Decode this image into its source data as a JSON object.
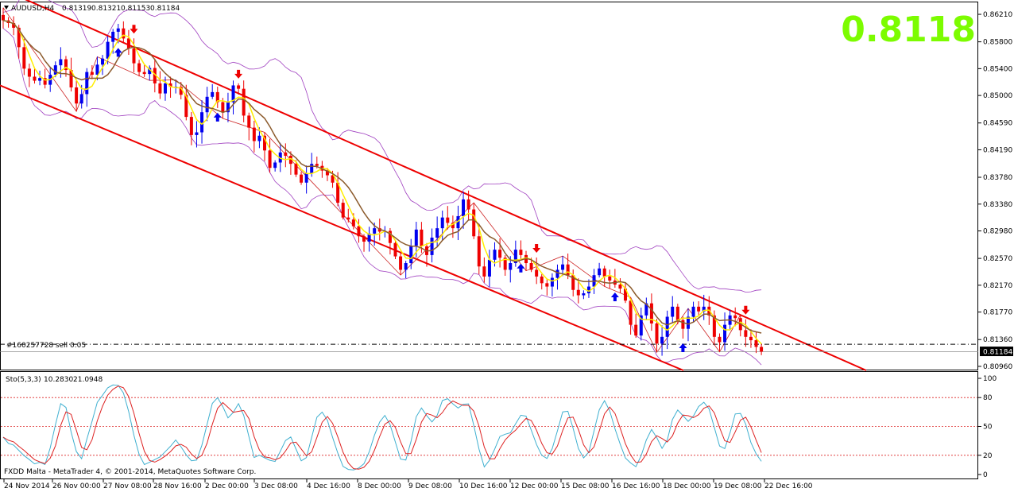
{
  "chart_data": [
    {
      "type": "candlestick",
      "title": "AUDUSD,H4",
      "ohlc_header": [
        "0.81319",
        "0.81321",
        "0.81153",
        "0.81184"
      ],
      "price_overlay": "0.8118",
      "ylim": [
        0.809,
        0.864
      ],
      "yticks": [
        "0.86210",
        "0.85800",
        "0.85400",
        "0.85000",
        "0.84590",
        "0.84190",
        "0.83780",
        "0.83380",
        "0.82980",
        "0.82570",
        "0.82170",
        "0.81770",
        "0.81360",
        "0.80960"
      ],
      "current_price_label": "0.81184",
      "order_label": "#160257728 sell 0.05",
      "order_price": 0.8129,
      "colors": {
        "up": "#0000ee",
        "down": "#ee0000",
        "fast_ma": "#ffee00",
        "slow_ma": "#8b5a2b",
        "channel": "#ee0000",
        "bands": "#a040c0",
        "overlay": "#7cfc00"
      },
      "channel_upper": [
        [
          0,
          0.866
        ],
        [
          1090,
          0.809
        ]
      ],
      "channel_lower": [
        [
          0,
          0.8515
        ],
        [
          860,
          0.809
        ]
      ],
      "closes": [
        0.8612,
        0.8608,
        0.8601,
        0.8572,
        0.854,
        0.8528,
        0.8522,
        0.8526,
        0.8516,
        0.8531,
        0.8545,
        0.8554,
        0.8538,
        0.8512,
        0.8488,
        0.8502,
        0.8535,
        0.8531,
        0.8546,
        0.8555,
        0.858,
        0.8595,
        0.86,
        0.8585,
        0.857,
        0.8548,
        0.8535,
        0.8532,
        0.8541,
        0.8518,
        0.8503,
        0.8518,
        0.8513,
        0.8513,
        0.8501,
        0.8468,
        0.8441,
        0.8445,
        0.8475,
        0.8498,
        0.8505,
        0.849,
        0.8475,
        0.849,
        0.8515,
        0.851,
        0.847,
        0.8452,
        0.8432,
        0.844,
        0.8418,
        0.8392,
        0.84,
        0.8415,
        0.841,
        0.8398,
        0.8382,
        0.837,
        0.8384,
        0.8398,
        0.8395,
        0.8388,
        0.8381,
        0.837,
        0.834,
        0.8318,
        0.8315,
        0.8305,
        0.829,
        0.8282,
        0.8294,
        0.8302,
        0.8297,
        0.8298,
        0.828,
        0.826,
        0.824,
        0.825,
        0.8276,
        0.83,
        0.8275,
        0.8262,
        0.8288,
        0.8302,
        0.8318,
        0.831,
        0.8302,
        0.832,
        0.8345,
        0.833,
        0.829,
        0.8245,
        0.823,
        0.8255,
        0.827,
        0.8258,
        0.824,
        0.825,
        0.827,
        0.8262,
        0.825,
        0.824,
        0.823,
        0.822,
        0.8215,
        0.8228,
        0.824,
        0.8248,
        0.8232,
        0.821,
        0.8202,
        0.8205,
        0.8215,
        0.8232,
        0.8242,
        0.823,
        0.8224,
        0.8218,
        0.8212,
        0.8194,
        0.8158,
        0.8142,
        0.8172,
        0.819,
        0.816,
        0.813,
        0.814,
        0.817,
        0.8185,
        0.8165,
        0.8152,
        0.817,
        0.8185,
        0.8178,
        0.8185,
        0.8172,
        0.814,
        0.8132,
        0.8158,
        0.8172,
        0.8168,
        0.815,
        0.814,
        0.8135,
        0.8125,
        0.8118
      ],
      "up_arrows": [
        22,
        41,
        99,
        117,
        130,
        150,
        185
      ],
      "down_arrows": [
        25,
        45,
        102,
        142,
        153,
        182
      ],
      "x_ticks": [
        "24 Nov 2014",
        "26 Nov 00:00",
        "27 Nov 08:00",
        "28 Nov 16:00",
        "2 Dec 00:00",
        "3 Dec 08:00",
        "4 Dec 16:00",
        "8 Dec 00:00",
        "9 Dec 08:00",
        "10 Dec 16:00",
        "12 Dec 00:00",
        "15 Dec 08:00",
        "16 Dec 16:00",
        "18 Dec 00:00",
        "19 Dec 08:00",
        "22 Dec 16:00"
      ]
    },
    {
      "type": "line",
      "title": "Sto(5,3,3)",
      "values_header": [
        "10.2830",
        "21.0948"
      ],
      "ylim": [
        0,
        100
      ],
      "yticks": [
        "100",
        "80",
        "50",
        "20",
        "0"
      ],
      "levels": [
        80,
        50,
        20
      ],
      "colors": {
        "main": "#40b0d0",
        "signal": "#dd2222",
        "levels": "#dd2222"
      }
    }
  ],
  "footer": {
    "text": "FXDD Malta - MetaTrader 4, © 2001-2014, MetaQuotes Software Corp."
  }
}
